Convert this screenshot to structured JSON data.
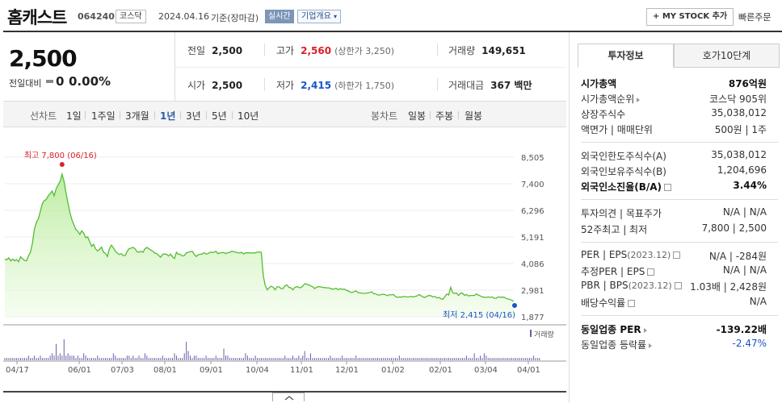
{
  "header": {
    "company": "홈캐스트",
    "code": "064240",
    "market": "코스닥",
    "date": "2024.04.16",
    "basis": "기준(장마감)",
    "live_badge": "실시간",
    "overview_button": "기업개요",
    "mystock_button": "+ MY STOCK 추가",
    "quick_order": "빠른주문"
  },
  "summary": {
    "price": "2,500",
    "change_label": "전일대비",
    "change_value": "0",
    "change_pct": "0.00%",
    "prev_label": "전일",
    "prev_value": "2,500",
    "open_label": "시가",
    "open_value": "2,500",
    "high_label": "고가",
    "high_value": "2,560",
    "high_limit": "(상한가 3,250)",
    "low_label": "저가",
    "low_value": "2,415",
    "low_limit": "(하한가 1,750)",
    "volume_label": "거래량",
    "volume_value": "149,651",
    "amount_label": "거래대금",
    "amount_value": "367 백만"
  },
  "tabs": {
    "line_label": "선차트",
    "periods": [
      "1일",
      "1주일",
      "3개월",
      "1년",
      "3년",
      "5년",
      "10년"
    ],
    "active_period": "1년",
    "candle_label": "봉차트",
    "candle_periods": [
      "일봉",
      "주봉",
      "월봉"
    ]
  },
  "chart_data": {
    "type": "area",
    "y_ticks": [
      "8,505",
      "7,400",
      "6,296",
      "5,191",
      "4,086",
      "2,981",
      "1,877"
    ],
    "ylim": [
      1877,
      8505
    ],
    "x_ticks": [
      "04/17",
      "06/01",
      "07/03",
      "08/01",
      "09/01",
      "10/04",
      "11/01",
      "12/01",
      "01/02",
      "02/01",
      "03/04",
      "04/01"
    ],
    "high_annotation": "최고 7,800 (06/16)",
    "low_annotation": "최저 2,415 (04/16)",
    "volume_label": "거래량",
    "series": [
      {
        "values": [
          4270,
          4240,
          4320,
          4200,
          4270,
          4200,
          4250,
          4160,
          4370,
          4280,
          4220,
          4200,
          4410,
          4560,
          4950,
          5520,
          5800,
          5950,
          6260,
          6570,
          6700,
          6750,
          6900,
          7000,
          7100,
          6900,
          7200,
          7350,
          7500,
          7800,
          7500,
          7020,
          6600,
          6200,
          5900,
          5700,
          5500,
          5430,
          5300,
          5450,
          5350,
          5160,
          5190,
          5000,
          4800,
          4890,
          4700,
          4610,
          4680,
          4770,
          4560,
          4510,
          4380,
          4700,
          4850,
          4750,
          4600,
          4520,
          4460,
          4500,
          4420,
          4420,
          4600,
          4700,
          4730,
          4760,
          4700,
          4580,
          4560,
          4600,
          4550,
          4700,
          4760,
          4700,
          4650,
          4600,
          4520,
          4500,
          4420,
          4350,
          4470,
          4480,
          4470,
          4400,
          4480,
          4360,
          4300,
          4550,
          4470,
          4470,
          4400,
          4420,
          4530,
          4560,
          4580,
          4600,
          4470,
          4380,
          4450,
          4470,
          4480,
          4540,
          4480,
          4500,
          4550,
          4560,
          4550,
          4600,
          4500,
          4520,
          4540,
          4540,
          4500,
          4540,
          4550,
          4600,
          4580,
          4560,
          4540,
          4520,
          4560,
          4480,
          4530,
          4530,
          4530,
          4520,
          4530,
          4530,
          4560,
          4570,
          4560,
          3580,
          3180,
          3000,
          3080,
          3150,
          3100,
          3000,
          3120,
          3120,
          3050,
          3050,
          3160,
          3200,
          3100,
          3080,
          3000,
          3100,
          3130,
          3100,
          3080,
          3150,
          3250,
          3230,
          3200,
          3160,
          3130,
          3050,
          3100,
          3130,
          3120,
          3100,
          3090,
          3080,
          3080,
          3060,
          3020,
          3040,
          3060,
          3000,
          3050,
          3010,
          3030,
          2980,
          2950,
          2900,
          2880,
          2920,
          2950,
          2880,
          2870,
          2850,
          2850,
          2850,
          2870,
          2880,
          2910,
          2830,
          2830,
          2780,
          2780,
          2800,
          2810,
          2790,
          2750,
          2800,
          2780,
          2800,
          2720,
          2680,
          2700,
          2690,
          2720,
          2710,
          2700,
          2700,
          2720,
          2700,
          2720,
          2740,
          2800,
          2750,
          2700,
          2680,
          2730,
          2760,
          2750,
          2700,
          2720,
          2660,
          2680,
          2620,
          2600,
          2700,
          2820,
          2780,
          3100,
          2880,
          2850,
          2860,
          2760,
          2850,
          2860,
          2760,
          2800,
          2740,
          2760,
          2760,
          2760,
          2820,
          2780,
          2740,
          2700,
          2690,
          2680,
          2700,
          2680,
          2700,
          2650,
          2640,
          2700,
          2690,
          2690,
          2690,
          2650,
          2610,
          2600,
          2560,
          2520
        ]
      }
    ],
    "volume": [
      1,
      1,
      1,
      1,
      1,
      1,
      1,
      1,
      1,
      1,
      1,
      1,
      2,
      1,
      1,
      2,
      1,
      1,
      2,
      1,
      1,
      1,
      1,
      2,
      3,
      2,
      7,
      2,
      3,
      2,
      9,
      2,
      3,
      2,
      2,
      2,
      1,
      2,
      1,
      1,
      3,
      2,
      1,
      1,
      1,
      1,
      1,
      2,
      1,
      1,
      1,
      1,
      1,
      1,
      1,
      3,
      2,
      1,
      1,
      1,
      1,
      1,
      2,
      2,
      1,
      2,
      1,
      1,
      2,
      1,
      1,
      3,
      2,
      1,
      1,
      1,
      1,
      1,
      1,
      1,
      2,
      1,
      1,
      1,
      1,
      1,
      3,
      2,
      1,
      1,
      1,
      3,
      8,
      4,
      2,
      1,
      2,
      2,
      1,
      1,
      1,
      1,
      2,
      1,
      1,
      1,
      1,
      2,
      1,
      1,
      1,
      5,
      2,
      2,
      1,
      1,
      1,
      1,
      1,
      1,
      1,
      1,
      3,
      2,
      1,
      1,
      1,
      2,
      1,
      1,
      1,
      1,
      1,
      1,
      1,
      1,
      1,
      1,
      1,
      1,
      1,
      1,
      2,
      1,
      1,
      1,
      2,
      1,
      1,
      2,
      1,
      2,
      4,
      1,
      1,
      3,
      1,
      1,
      1,
      1,
      1,
      1,
      1,
      1,
      1,
      2,
      1,
      1,
      1,
      1,
      1,
      2,
      1,
      1,
      1,
      1,
      1,
      1,
      2,
      1,
      1,
      1,
      1,
      1,
      1,
      1,
      1,
      1,
      1,
      1,
      1,
      1,
      1,
      1,
      1,
      1,
      1,
      1,
      1,
      1,
      2,
      1,
      1,
      1,
      1,
      1,
      1,
      1,
      1,
      1,
      1,
      1,
      1,
      1,
      1,
      1,
      1,
      1,
      1,
      1,
      1,
      1,
      1,
      1,
      1,
      1,
      1,
      1,
      1,
      1,
      1,
      1,
      1,
      1,
      2,
      1,
      1,
      1,
      3,
      1,
      1,
      2,
      1,
      3,
      2,
      1,
      1,
      1,
      1,
      1,
      1,
      1,
      1,
      1,
      1,
      1,
      1,
      1,
      1,
      1,
      1,
      1,
      1,
      1,
      1,
      1,
      1,
      1,
      2,
      1,
      1,
      1
    ]
  },
  "panel": {
    "tab_invest": "투자정보",
    "tab_quote": "호가10단계",
    "rows": {
      "market_cap": {
        "label": "시가총액",
        "value": "876억원"
      },
      "cap_rank": {
        "label": "시가총액순위",
        "value": "코스닥 905위"
      },
      "shares": {
        "label": "상장주식수",
        "value": "35,038,012"
      },
      "par": {
        "label": "액면가 | 매매단위",
        "value": "500원 | 1주"
      },
      "foreign_limit": {
        "label": "외국인한도주식수(A)",
        "value": "35,038,012"
      },
      "foreign_hold": {
        "label": "외국인보유주식수(B)",
        "value": "1,204,696"
      },
      "foreign_ratio": {
        "label": "외국인소진율(B/A)",
        "value": "3.44%"
      },
      "opinion": {
        "label": "투자의견 | 목표주가",
        "value": "N/A | N/A"
      },
      "w52": {
        "label": "52주최고 | 최저",
        "value": "7,800 | 2,500"
      },
      "per_eps": {
        "label": "PER | EPS",
        "sub": "(2023.12)",
        "value": "N/A | -284원"
      },
      "est_per": {
        "label": "추정PER | EPS",
        "value": "N/A | N/A"
      },
      "pbr_bps": {
        "label": "PBR | BPS",
        "sub": "(2023.12)",
        "value": "1.03배 | 2,428원"
      },
      "dividend": {
        "label": "배당수익률",
        "value": "N/A"
      },
      "ind_per": {
        "label": "동일업종 PER",
        "value": "-139.22배"
      },
      "ind_change": {
        "label": "동일업종 등락률",
        "value": "-2.47%"
      }
    }
  },
  "colors": {
    "accent_blue": "#2a5ba8",
    "up_red": "#d9202b",
    "down_blue": "#1a55c7",
    "line_green": "#55bb33",
    "area_green": "#c9f0b3"
  }
}
